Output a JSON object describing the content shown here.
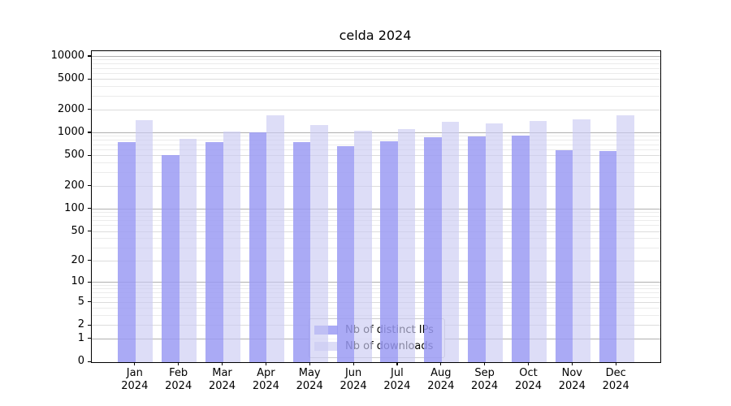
{
  "window": {
    "title": "celda 2024"
  },
  "colors": {
    "background": "#ffffff",
    "spine": "#000000",
    "grid_major": "#b0b0b0",
    "grid_mid": "#dcdcdc",
    "grid_minor": "#ebebeb",
    "ip_bar": "#9b9bf3",
    "dl_bar": "#cbcbf3",
    "legend_border": "#cccccc",
    "text": "#000000"
  },
  "chart_data": {
    "type": "bar",
    "title": "celda 2024",
    "xlabel": "",
    "ylabel": "",
    "y_scale": "log10(value+1)",
    "ylim": [
      0,
      11850
    ],
    "grid": true,
    "legend_position": "bottom-center-inside",
    "y_ticks": [
      10000,
      5000,
      2000,
      1000,
      500,
      200,
      100,
      50,
      20,
      10,
      5,
      2,
      1,
      0
    ],
    "categories": [
      "Jan",
      "Feb",
      "Mar",
      "Apr",
      "May",
      "Jun",
      "Jul",
      "Aug",
      "Sep",
      "Oct",
      "Nov",
      "Dec"
    ],
    "category_year": "2024",
    "series": [
      {
        "name": "Nb of distinct IPs",
        "key": "distinct-ips",
        "color": "#9b9bf3",
        "values": [
          760,
          515,
          760,
          1020,
          760,
          670,
          780,
          880,
          900,
          930,
          590,
          580
        ]
      },
      {
        "name": "Nb of downloads",
        "key": "downloads",
        "color": "#cbcbf3",
        "values": [
          1490,
          850,
          1060,
          1715,
          1290,
          1080,
          1120,
          1400,
          1340,
          1450,
          1530,
          1715
        ]
      }
    ]
  },
  "legend": {
    "items": [
      {
        "label": "Nb of distinct IPs"
      },
      {
        "label": "Nb of downloads"
      }
    ]
  }
}
